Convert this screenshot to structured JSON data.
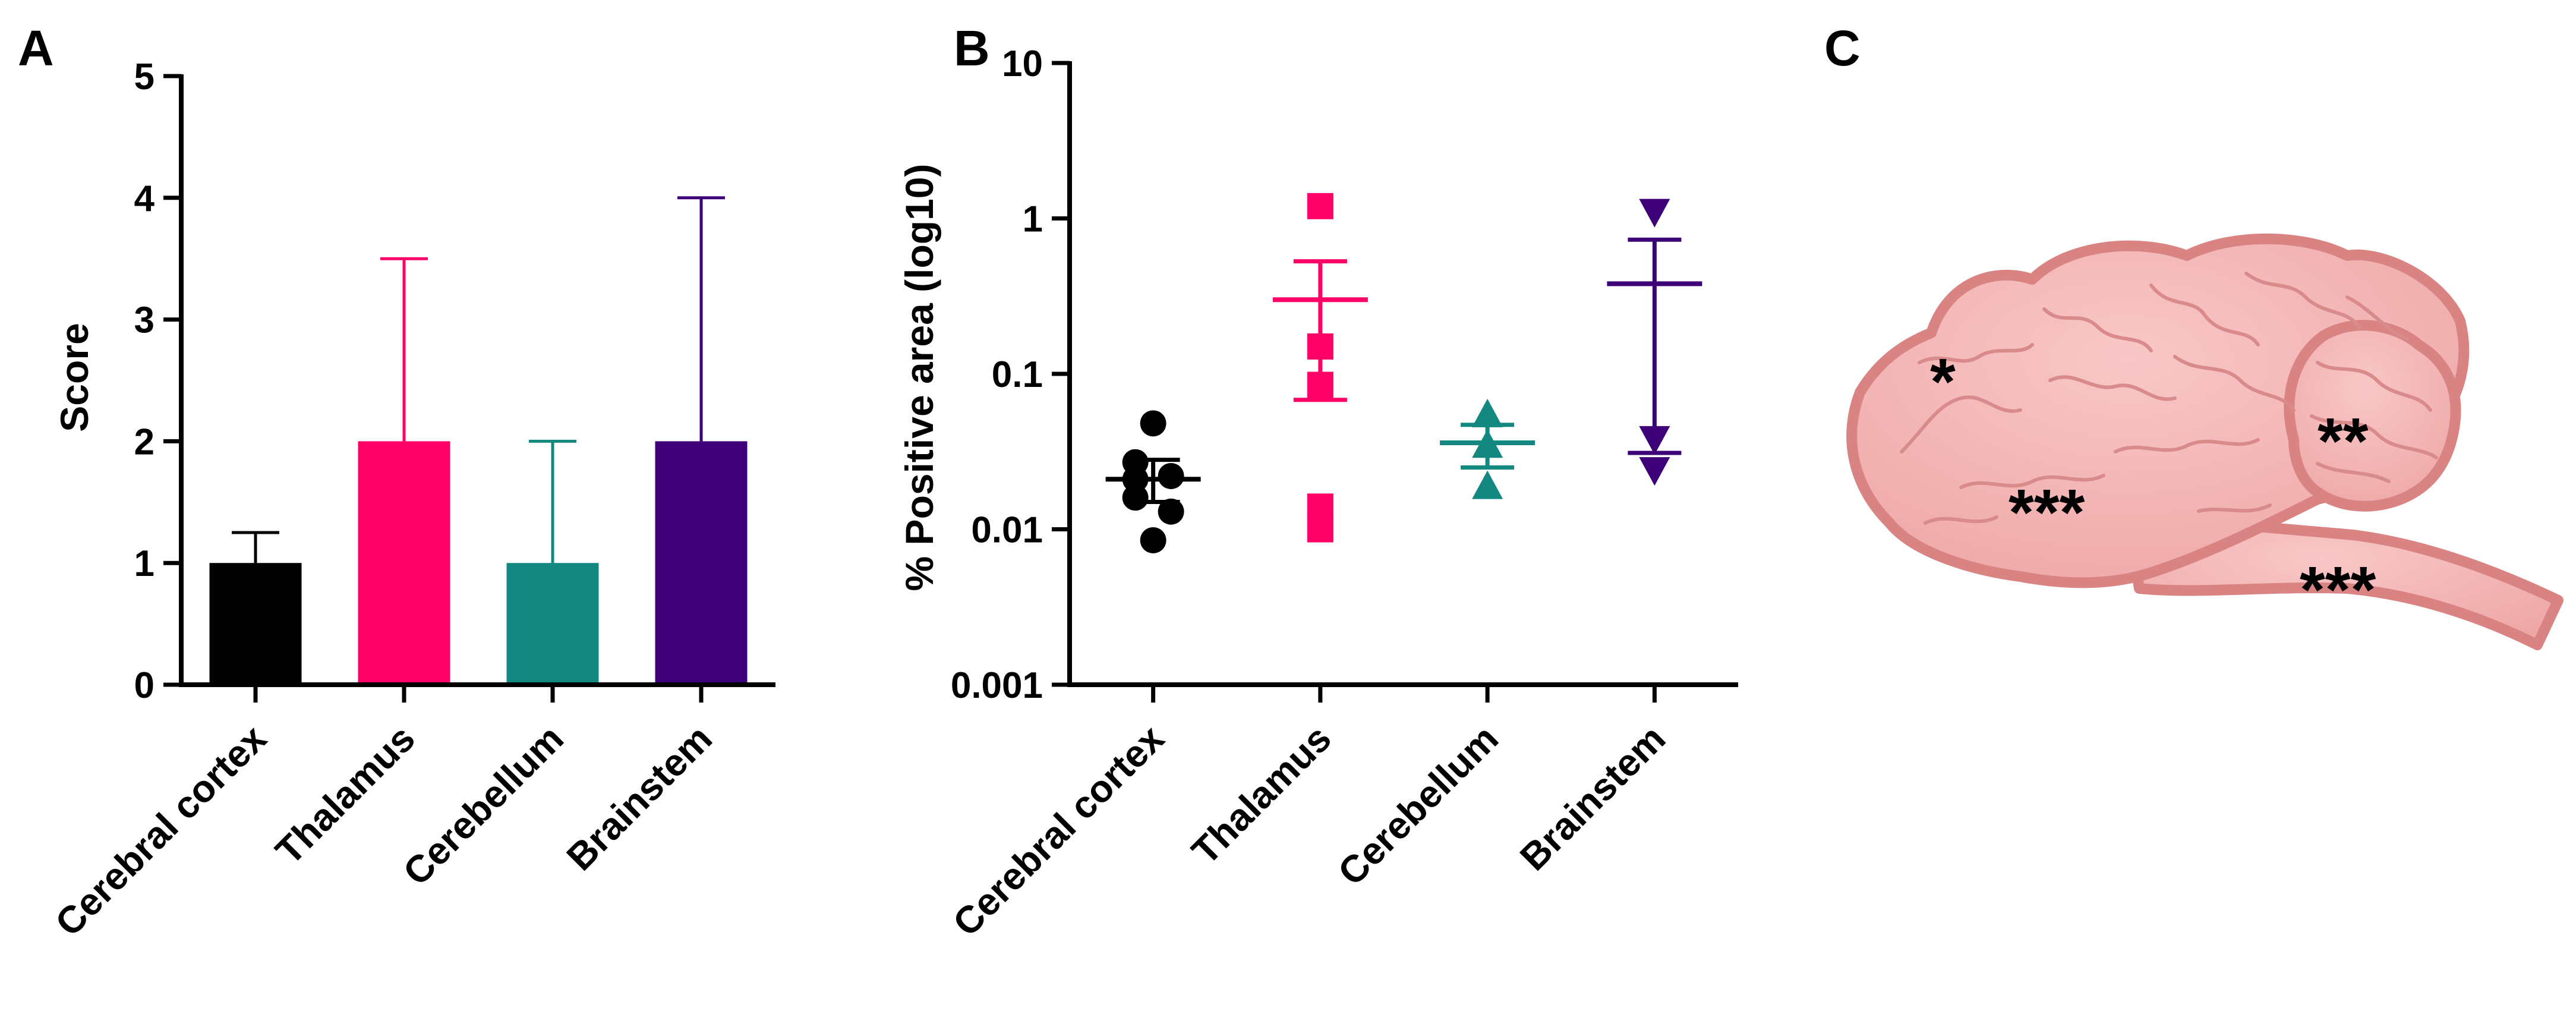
{
  "panels": {
    "a": "A",
    "b": "B",
    "c": "C"
  },
  "chart_data": [
    {
      "type": "bar",
      "panel": "A",
      "ylabel": "Score",
      "ylim": [
        0,
        5
      ],
      "yticks": [
        0,
        1,
        2,
        3,
        4,
        5
      ],
      "ytick_labels": [
        "0",
        "1",
        "2",
        "3",
        "4",
        "5"
      ],
      "categories": [
        "Cerebral cortex",
        "Thalamus",
        "Cerebellum",
        "Brainstem"
      ],
      "values": [
        1,
        2,
        1,
        2
      ],
      "error_upper": [
        1.25,
        3.5,
        2.0,
        4.0
      ],
      "colors": [
        "#000000",
        "#ff0066",
        "#138880",
        "#3d0078"
      ]
    },
    {
      "type": "scatter",
      "panel": "B",
      "ylabel": "% Positive area (log10)",
      "yscale": "log10",
      "ylim": [
        0.001,
        10
      ],
      "yticks": [
        0.001,
        0.01,
        0.1,
        1,
        10
      ],
      "ytick_labels": [
        "0.001",
        "0.01",
        "0.1",
        "1",
        "10"
      ],
      "categories": [
        "Cerebral cortex",
        "Thalamus",
        "Cerebellum",
        "Brainstem"
      ],
      "series": [
        {
          "name": "Cerebral cortex",
          "marker": "circle",
          "color": "#000000",
          "points": [
            0.048,
            0.027,
            0.022,
            0.021,
            0.013,
            0.016,
            0.0085
          ],
          "point_offsets": [
            0,
            -0.4,
            0.4,
            -0.4,
            0.4,
            -0.4,
            0
          ],
          "mean": 0.021,
          "sem_low": 0.015,
          "sem_high": 0.028
        },
        {
          "name": "Thalamus",
          "marker": "square",
          "color": "#ff0066",
          "points": [
            1.2,
            0.15,
            0.085,
            0.014,
            0.01
          ],
          "point_offsets": [
            0,
            0,
            0,
            0,
            0
          ],
          "mean": 0.3,
          "sem_low": 0.068,
          "sem_high": 0.53
        },
        {
          "name": "Cerebellum",
          "marker": "triangle-up",
          "color": "#138880",
          "points": [
            0.055,
            0.035,
            0.019
          ],
          "point_offsets": [
            0,
            0,
            0
          ],
          "mean": 0.036,
          "sem_low": 0.025,
          "sem_high": 0.047
        },
        {
          "name": "Brainstem",
          "marker": "triangle-down",
          "color": "#3d0078",
          "points": [
            1.1,
            0.038,
            0.024
          ],
          "point_offsets": [
            0,
            0,
            0
          ],
          "mean": 0.38,
          "sem_low": 0.031,
          "sem_high": 0.73
        }
      ]
    }
  ],
  "illustration": {
    "cortex_mark": "*",
    "cerebellum_mark": "**",
    "thalamus_mark": "***",
    "brainstem_mark": "***",
    "fill_color": "#f4b6b6",
    "outline_color": "#d98383"
  }
}
